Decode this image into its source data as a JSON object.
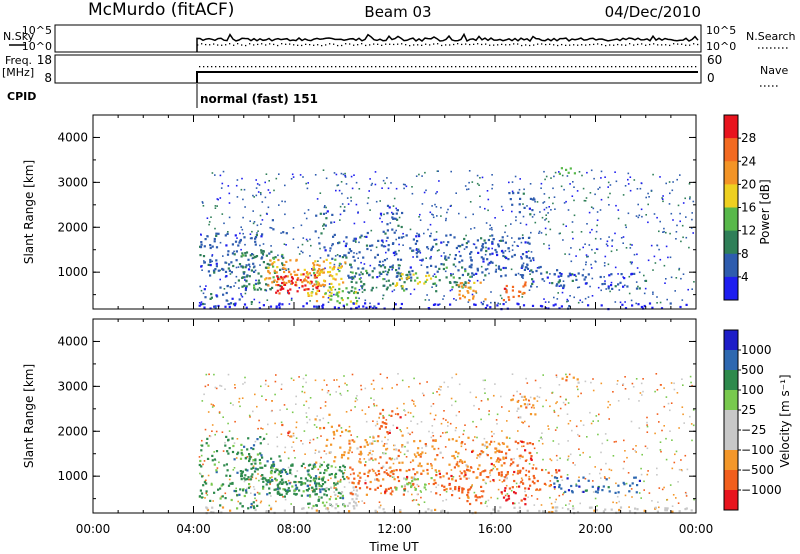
{
  "header": {
    "station": "McMurdo (fitACF)",
    "beam": "Beam 03",
    "date": "04/Dec/2010"
  },
  "status_panels": {
    "nsky_label": "N.Sky",
    "nsky_ticks": [
      "10^5",
      "10^0"
    ],
    "nsearch_label": "N.Search",
    "nsearch_ticks": [
      "10^5",
      "10^0"
    ],
    "freq_label": "Freq.",
    "freq_unit": "[MHz]",
    "freq_ticks": [
      "18",
      "8"
    ],
    "nave_label": "Nave",
    "nave_ticks": [
      "60",
      "0"
    ],
    "cpid_label": "CPID",
    "cpid_value": "normal (fast) 151"
  },
  "colors": {
    "power": [
      "#1e1ef0",
      "#2e5cae",
      "#2f7f58",
      "#58b84a",
      "#eed020",
      "#f39426",
      "#f36a21",
      "#e8141e"
    ],
    "velocity": [
      "#e8141e",
      "#f25f1d",
      "#f3972a",
      "#c8c8c8",
      "#c8c8c8",
      "#79c94e",
      "#2e8a4c",
      "#2e68b0",
      "#1e1ec8"
    ]
  },
  "chart_data": [
    {
      "type": "heatmap",
      "name": "power",
      "xlabel": "",
      "ylabel": "Slant Range [km]",
      "x_ticks": [
        "00:00",
        "04:00",
        "08:00",
        "12:00",
        "16:00",
        "20:00",
        "00:00"
      ],
      "xlim_hours": [
        0,
        24
      ],
      "y_ticks": [
        1000,
        2000,
        3000,
        4000
      ],
      "ylim": [
        180,
        4500
      ],
      "colorbar_label": "Power [dB]",
      "colorbar_ticks": [
        "4",
        "8",
        "12",
        "16",
        "20",
        "24",
        "28"
      ],
      "colorbar_range": [
        0,
        32
      ],
      "data_start_hour": 4.2
    },
    {
      "type": "heatmap",
      "name": "velocity",
      "xlabel": "Time UT",
      "ylabel": "Slant Range [km]",
      "x_ticks": [
        "00:00",
        "04:00",
        "08:00",
        "12:00",
        "16:00",
        "20:00",
        "00:00"
      ],
      "xlim_hours": [
        0,
        24
      ],
      "y_ticks": [
        1000,
        2000,
        3000,
        4000
      ],
      "ylim": [
        180,
        4500
      ],
      "colorbar_label": "Velocity [m s⁻¹]",
      "colorbar_ticks": [
        "1000",
        "500",
        "100",
        "25",
        "−25",
        "−100",
        "−500",
        "−1000"
      ],
      "data_start_hour": 4.2
    }
  ]
}
